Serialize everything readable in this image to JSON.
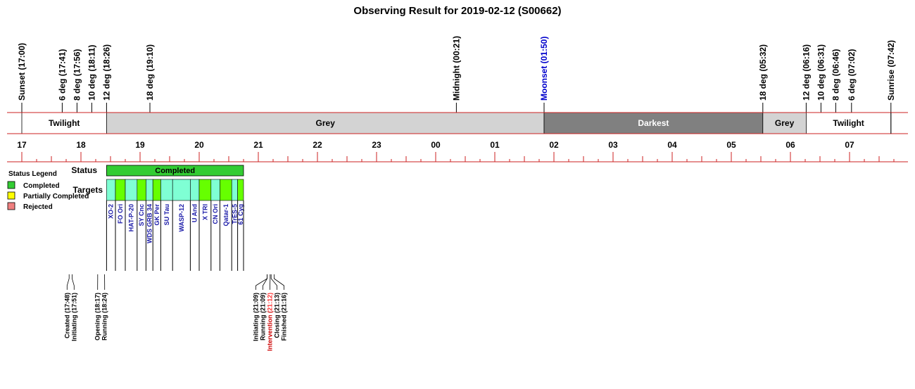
{
  "chart_data": {
    "type": "timeline",
    "title": "Observing Result for 2019-02-12 (S00662)",
    "time_range": [
      "17:00",
      "07:42"
    ],
    "events": [
      {
        "label": "Sunset (17:00)",
        "time": "17:00",
        "color": "#000000"
      },
      {
        "label": "6 deg (17:41)",
        "time": "17:41",
        "color": "#000000"
      },
      {
        "label": "8 deg (17:56)",
        "time": "17:56",
        "color": "#000000"
      },
      {
        "label": "10 deg (18:11)",
        "time": "18:11",
        "color": "#000000"
      },
      {
        "label": "12 deg (18:26)",
        "time": "18:26",
        "color": "#000000"
      },
      {
        "label": "18 deg (19:10)",
        "time": "19:10",
        "color": "#000000"
      },
      {
        "label": "Midnight (00:21)",
        "time": "00:21",
        "color": "#000000"
      },
      {
        "label": "Moonset (01:50)",
        "time": "01:50",
        "color": "#0000cc"
      },
      {
        "label": "18 deg (05:32)",
        "time": "05:32",
        "color": "#000000"
      },
      {
        "label": "12 deg (06:16)",
        "time": "06:16",
        "color": "#000000"
      },
      {
        "label": "10 deg (06:31)",
        "time": "06:31",
        "color": "#000000"
      },
      {
        "label": "8 deg (06:46)",
        "time": "06:46",
        "color": "#000000"
      },
      {
        "label": "6 deg (07:02)",
        "time": "07:02",
        "color": "#000000"
      },
      {
        "label": "Sunrise (07:42)",
        "time": "07:42",
        "color": "#000000"
      }
    ],
    "bands": [
      {
        "label": "Twilight",
        "start": "17:00",
        "end": "18:26",
        "color": "#ffffff",
        "text_color": "#000000"
      },
      {
        "label": "Grey",
        "start": "18:26",
        "end": "01:50",
        "color": "#d3d3d3",
        "text_color": "#000000"
      },
      {
        "label": "Darkest",
        "start": "01:50",
        "end": "05:32",
        "color": "#808080",
        "text_color": "#ffffff"
      },
      {
        "label": "Grey",
        "start": "05:32",
        "end": "06:16",
        "color": "#d3d3d3",
        "text_color": "#000000"
      },
      {
        "label": "Twilight",
        "start": "06:16",
        "end": "07:42",
        "color": "#ffffff",
        "text_color": "#000000"
      }
    ],
    "hour_ticks": [
      "17",
      "18",
      "19",
      "20",
      "21",
      "22",
      "23",
      "00",
      "01",
      "02",
      "03",
      "04",
      "05",
      "06",
      "07"
    ],
    "status_bar": {
      "label": "Completed",
      "start": "18:26",
      "end": "20:45",
      "color": "#33cc33"
    },
    "targets": [
      {
        "name": "XO-2",
        "start": "18:26",
        "end": "18:35",
        "color": "#7fffd4"
      },
      {
        "name": "FO Ori",
        "start": "18:35",
        "end": "18:45",
        "color": "#66ff00"
      },
      {
        "name": "HAT-P-20",
        "start": "18:45",
        "end": "18:57",
        "color": "#7fffd4"
      },
      {
        "name": "SY Cnc",
        "start": "18:57",
        "end": "19:06",
        "color": "#66ff00"
      },
      {
        "name": "WDS GRB 34",
        "start": "19:06",
        "end": "19:13",
        "color": "#7fffd4"
      },
      {
        "name": "GK Per",
        "start": "19:13",
        "end": "19:21",
        "color": "#66ff00"
      },
      {
        "name": "SU Tau",
        "start": "19:21",
        "end": "19:33",
        "color": "#7fffd4"
      },
      {
        "name": "WASP-12",
        "start": "19:33",
        "end": "19:51",
        "color": "#7fffd4"
      },
      {
        "name": "U And",
        "start": "19:51",
        "end": "20:00",
        "color": "#7fffd4"
      },
      {
        "name": "X TRI",
        "start": "20:00",
        "end": "20:12",
        "color": "#66ff00"
      },
      {
        "name": "CN Ori",
        "start": "20:12",
        "end": "20:21",
        "color": "#7fffd4"
      },
      {
        "name": "Qatar-1",
        "start": "20:21",
        "end": "20:33",
        "color": "#66ff00"
      },
      {
        "name": "TrES-5",
        "start": "20:33",
        "end": "20:39",
        "color": "#7fffd4"
      },
      {
        "name": "61 Cyg",
        "start": "20:39",
        "end": "20:45",
        "color": "#66ff00"
      }
    ],
    "log_events": [
      {
        "label": "Created (17:48)",
        "time": "17:48",
        "color": "#000000"
      },
      {
        "label": "Initiating (17:51)",
        "time": "17:51",
        "color": "#000000"
      },
      {
        "label": "Opening (18:17)",
        "time": "18:17",
        "color": "#000000"
      },
      {
        "label": "Running (18:24)",
        "time": "18:24",
        "color": "#000000"
      },
      {
        "label": "Initiating (21:09)",
        "time": "21:09",
        "color": "#000000"
      },
      {
        "label": "Running (21:09)",
        "time": "21:09",
        "color": "#000000"
      },
      {
        "label": "Intervention (21:12)",
        "time": "21:12",
        "color": "#cc0000",
        "highlight": "21:12"
      },
      {
        "label": "Closing (21:13)",
        "time": "21:13",
        "color": "#000000"
      },
      {
        "label": "Finished (21:16)",
        "time": "21:16",
        "color": "#000000"
      }
    ]
  },
  "labels": {
    "status": "Status",
    "targets": "Targets"
  },
  "legend": {
    "title": "Status Legend",
    "items": [
      {
        "label": "Completed",
        "color": "#33cc33"
      },
      {
        "label": "Partially Completed",
        "color": "#ffff00"
      },
      {
        "label": "Rejected",
        "color": "#f08080"
      }
    ]
  }
}
